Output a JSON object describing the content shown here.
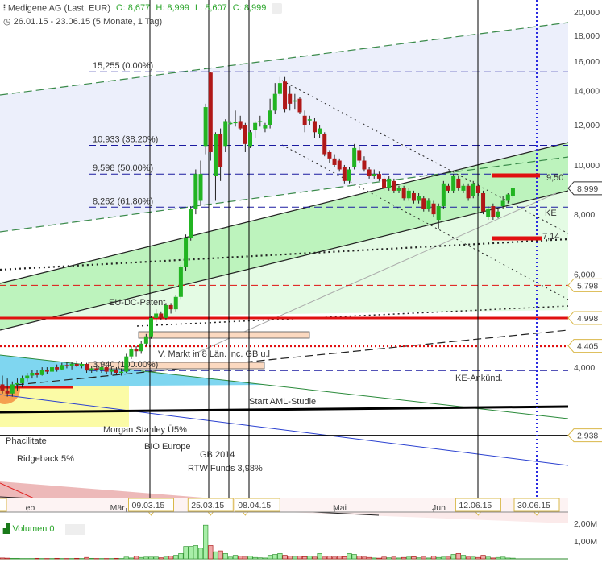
{
  "header": {
    "instrument": "Medigene AG (Last, EUR)",
    "open": "O: 8,677",
    "high": "H: 8,999",
    "low": "L: 8,607",
    "close": "C: 8,999",
    "range": "26.01.15 - 23.06.15 (5 Monate, 1 Tag)",
    "icons": {
      "indicator": "candlestick-icon",
      "time": "clock-icon",
      "settings": "gear-icon"
    }
  },
  "colors": {
    "up": "#22b422",
    "down": "#b01818",
    "fib": "#1a1aa0",
    "support": "#e01010",
    "channel_green": "#bdf3bd",
    "channel_blue": "#eceffb",
    "vline_blue": "#2a2ae0"
  },
  "chart_data": {
    "type": "candlestick",
    "scale": "log",
    "ylim": [
      3.7,
      20
    ],
    "y_ticks": [
      "20,000",
      "18,000",
      "16,000",
      "14,000",
      "12,000",
      "10,000",
      "8,000",
      "6,000",
      "4,000"
    ],
    "y_tick_values": [
      20,
      18,
      16,
      14,
      12,
      10,
      8,
      6,
      4
    ],
    "month_labels": [
      {
        "label": "eb",
        "index": 4
      },
      {
        "label": "Mär",
        "index": 25
      },
      {
        "label": "Mai",
        "index": 67
      },
      {
        "label": "Jun",
        "index": 87
      }
    ],
    "date_tags": [
      {
        "label": "1.15",
        "index": 0
      },
      {
        "label": "09.03.15",
        "index": 30
      },
      {
        "label": "25.03.15",
        "index": 42
      },
      {
        "label": "08.04.15",
        "index": 49
      },
      {
        "label": "12.06.15",
        "index": 96
      },
      {
        "label": "30.06.15",
        "index": 108
      }
    ],
    "price_tags": [
      {
        "label": "8,999",
        "value": 8.999,
        "style": "current"
      },
      {
        "label": "5,798",
        "value": 5.798
      },
      {
        "label": "4,998",
        "value": 4.998
      },
      {
        "label": "4,405",
        "value": 4.405
      },
      {
        "label": "2,938",
        "value": 2.938
      }
    ],
    "fib_levels": [
      {
        "label": "15,255 (0.00%)",
        "value": 15.255
      },
      {
        "label": "10,933 (38.20%)",
        "value": 10.933
      },
      {
        "label": "9,598 (50.00%)",
        "value": 9.598
      },
      {
        "label": "8,262 (61.80%)",
        "value": 8.262
      },
      {
        "label": "3,940 (100.00%)",
        "value": 3.94
      }
    ],
    "ohlc": [
      [
        3.7,
        3.85,
        3.55,
        3.6
      ],
      [
        3.6,
        3.8,
        3.5,
        3.55
      ],
      [
        3.55,
        3.75,
        3.5,
        3.7
      ],
      [
        3.7,
        3.8,
        3.6,
        3.72
      ],
      [
        3.72,
        3.85,
        3.65,
        3.8
      ],
      [
        3.8,
        3.9,
        3.75,
        3.85
      ],
      [
        3.85,
        3.95,
        3.8,
        3.9
      ],
      [
        3.9,
        3.95,
        3.82,
        3.86
      ],
      [
        3.86,
        4.0,
        3.85,
        3.95
      ],
      [
        3.95,
        4.0,
        3.88,
        3.92
      ],
      [
        3.92,
        4.05,
        3.9,
        4.0
      ],
      [
        4.0,
        4.05,
        3.92,
        3.96
      ],
      [
        3.96,
        4.08,
        3.95,
        4.04
      ],
      [
        4.04,
        4.1,
        3.98,
        4.02
      ],
      [
        4.02,
        4.1,
        3.96,
        4.06
      ],
      [
        4.06,
        4.12,
        4.0,
        4.02
      ],
      [
        4.02,
        4.1,
        3.98,
        4.06
      ],
      [
        4.06,
        4.08,
        3.9,
        3.94
      ],
      [
        3.94,
        4.02,
        3.9,
        3.98
      ],
      [
        3.98,
        4.04,
        3.92,
        3.95
      ],
      [
        3.95,
        4.05,
        3.9,
        4.0
      ],
      [
        4.0,
        4.02,
        3.88,
        3.92
      ],
      [
        3.92,
        4.0,
        3.86,
        3.96
      ],
      [
        3.96,
        4.0,
        3.88,
        3.9
      ],
      [
        3.9,
        3.98,
        3.85,
        3.92
      ],
      [
        3.92,
        4.25,
        3.9,
        4.2
      ],
      [
        4.2,
        4.4,
        4.15,
        4.35
      ],
      [
        4.35,
        4.4,
        4.2,
        4.3
      ],
      [
        4.3,
        4.5,
        4.25,
        4.45
      ],
      [
        4.45,
        4.65,
        4.4,
        4.6
      ],
      [
        4.6,
        5.05,
        4.55,
        5.0
      ],
      [
        5.0,
        5.2,
        4.9,
        5.1
      ],
      [
        5.1,
        5.15,
        4.95,
        5.0
      ],
      [
        5.0,
        5.35,
        4.95,
        5.3
      ],
      [
        5.3,
        5.35,
        5.1,
        5.2
      ],
      [
        5.2,
        5.55,
        5.15,
        5.5
      ],
      [
        5.5,
        6.35,
        5.45,
        6.3
      ],
      [
        6.3,
        7.3,
        6.2,
        7.2
      ],
      [
        7.2,
        8.3,
        7.1,
        8.2
      ],
      [
        8.2,
        9.8,
        8.0,
        9.6
      ],
      [
        8.5,
        10.2,
        8.3,
        9.6
      ],
      [
        10.9,
        13.2,
        10.5,
        13.0
      ],
      [
        15.2,
        15.255,
        10.2,
        10.6
      ],
      [
        9.5,
        11.6,
        8.5,
        11.5
      ],
      [
        11.5,
        11.8,
        9.3,
        9.9
      ],
      [
        10.9,
        12.3,
        10.6,
        12.2
      ],
      [
        12.1,
        12.2,
        12.0,
        12.1
      ],
      [
        12.1,
        12.8,
        11.9,
        12.15
      ],
      [
        12.2,
        12.5,
        11.7,
        11.8
      ],
      [
        12.0,
        12.1,
        10.6,
        11.0
      ],
      [
        10.9,
        11.7,
        10.8,
        11.6
      ],
      [
        11.7,
        12.2,
        11.3,
        12.1
      ],
      [
        12.2,
        12.5,
        11.9,
        12.2
      ],
      [
        11.8,
        12.1,
        11.6,
        12.0
      ],
      [
        12.0,
        13.5,
        11.8,
        12.8
      ],
      [
        12.8,
        14.5,
        12.6,
        13.8
      ],
      [
        13.8,
        14.9,
        13.7,
        14.5
      ],
      [
        14.6,
        14.9,
        12.7,
        12.9
      ],
      [
        13.8,
        14.3,
        12.8,
        13.2
      ],
      [
        13.4,
        13.8,
        12.9,
        13.4
      ],
      [
        13.5,
        13.6,
        12.6,
        12.7
      ],
      [
        12.5,
        12.8,
        11.6,
        12.0
      ],
      [
        12.3,
        12.5,
        12.0,
        12.3
      ],
      [
        12.2,
        12.4,
        11.3,
        11.6
      ],
      [
        11.5,
        12.0,
        11.3,
        11.8
      ],
      [
        11.5,
        11.6,
        10.4,
        10.5
      ],
      [
        10.6,
        10.7,
        10.1,
        10.3
      ],
      [
        10.3,
        10.5,
        9.9,
        10.0
      ],
      [
        10.2,
        10.3,
        9.7,
        9.8
      ],
      [
        9.9,
        10.0,
        9.2,
        9.3
      ],
      [
        9.3,
        9.9,
        9.2,
        9.8
      ],
      [
        9.9,
        11.0,
        9.8,
        10.8
      ],
      [
        10.7,
        10.9,
        10.1,
        10.2
      ],
      [
        10.2,
        10.4,
        9.7,
        9.8
      ],
      [
        9.8,
        9.9,
        9.4,
        9.5
      ],
      [
        9.5,
        9.8,
        9.4,
        9.6
      ],
      [
        9.6,
        9.7,
        9.3,
        9.4
      ],
      [
        9.4,
        9.5,
        8.9,
        9.0
      ],
      [
        9.0,
        9.5,
        8.9,
        9.4
      ],
      [
        9.3,
        9.4,
        8.8,
        8.9
      ],
      [
        8.9,
        9.1,
        8.8,
        9.0
      ],
      [
        9.0,
        9.1,
        8.5,
        8.6
      ],
      [
        8.6,
        9.0,
        8.5,
        8.9
      ],
      [
        8.8,
        8.9,
        8.4,
        8.5
      ],
      [
        8.5,
        8.8,
        8.4,
        8.7
      ],
      [
        8.6,
        8.7,
        8.1,
        8.2
      ],
      [
        8.2,
        8.6,
        8.1,
        8.5
      ],
      [
        8.4,
        8.5,
        7.9,
        8.0
      ],
      [
        7.8,
        8.4,
        7.5,
        8.3
      ],
      [
        8.3,
        9.3,
        8.2,
        9.2
      ],
      [
        9.1,
        9.2,
        8.8,
        8.9
      ],
      [
        8.9,
        9.6,
        8.8,
        9.5
      ],
      [
        9.4,
        9.5,
        8.9,
        9.0
      ],
      [
        8.9,
        9.2,
        8.8,
        9.1
      ],
      [
        9.1,
        9.2,
        8.5,
        8.6
      ],
      [
        8.7,
        9.3,
        8.6,
        9.2
      ],
      [
        9.1,
        9.2,
        8.7,
        8.8
      ],
      [
        8.8,
        8.9,
        8.0,
        8.1
      ],
      [
        7.9,
        8.3,
        7.8,
        8.2
      ],
      [
        8.3,
        8.4,
        7.8,
        7.9
      ],
      [
        7.9,
        8.2,
        7.85,
        8.1
      ],
      [
        8.3,
        8.7,
        8.2,
        8.5
      ],
      [
        8.5,
        8.8,
        8.4,
        8.75
      ],
      [
        8.677,
        8.999,
        8.607,
        8.999
      ]
    ],
    "volume_label": "Volumen 0",
    "volume_ticks": [
      "2,00M",
      "1,00M"
    ],
    "volume_tick_values": [
      2,
      1
    ],
    "volume_m": [
      0.05,
      0.04,
      0.03,
      0.03,
      0.02,
      0.02,
      0.02,
      0.03,
      0.02,
      0.02,
      0.02,
      0.03,
      0.02,
      0.02,
      0.02,
      0.03,
      0.02,
      0.08,
      0.03,
      0.02,
      0.02,
      0.02,
      0.02,
      0.03,
      0.02,
      0.1,
      0.05,
      0.15,
      0.08,
      0.1,
      0.1,
      0.1,
      0.06,
      0.1,
      0.15,
      0.2,
      0.3,
      0.7,
      0.7,
      0.75,
      0.6,
      1.9,
      0.75,
      0.4,
      0.45,
      0.3,
      0.1,
      0.2,
      0.15,
      0.1,
      0.15,
      0.08,
      0.06,
      0.05,
      0.2,
      0.25,
      0.3,
      0.2,
      0.15,
      0.1,
      0.15,
      0.12,
      0.15,
      0.1,
      0.3,
      0.1,
      0.15,
      0.1,
      0.15,
      0.12,
      0.3,
      0.25,
      0.15,
      0.1,
      0.08,
      0.05,
      0.04,
      0.1,
      0.06,
      0.1,
      0.05,
      0.08,
      0.1,
      0.12,
      0.06,
      0.1,
      0.05,
      0.15,
      0.08,
      0.1,
      0.1,
      0.25,
      0.3,
      0.2,
      0.1,
      0.1,
      0.08,
      0.2,
      0.1,
      0.05,
      0.08,
      0.1,
      0.05,
      0.04
    ]
  },
  "annotations": {
    "r950": "9,50",
    "r714": "7,14",
    "ke": "KE",
    "ke_ankuend": "KE-Ankünd.",
    "eu_dc": "EU-DC-Patent",
    "v_markt": "V. Markt in 8 Län. inc. GB u.l",
    "aml": "Start AML-Studie",
    "morgan": "Morgan Stanley Ü5%",
    "phacilitate": "Phacilitate",
    "bio": "BIO Europe",
    "ridgeback": "Ridgeback 5%",
    "gb2014": "GB 2014",
    "rtw": "RTW Funds 3,98%"
  }
}
